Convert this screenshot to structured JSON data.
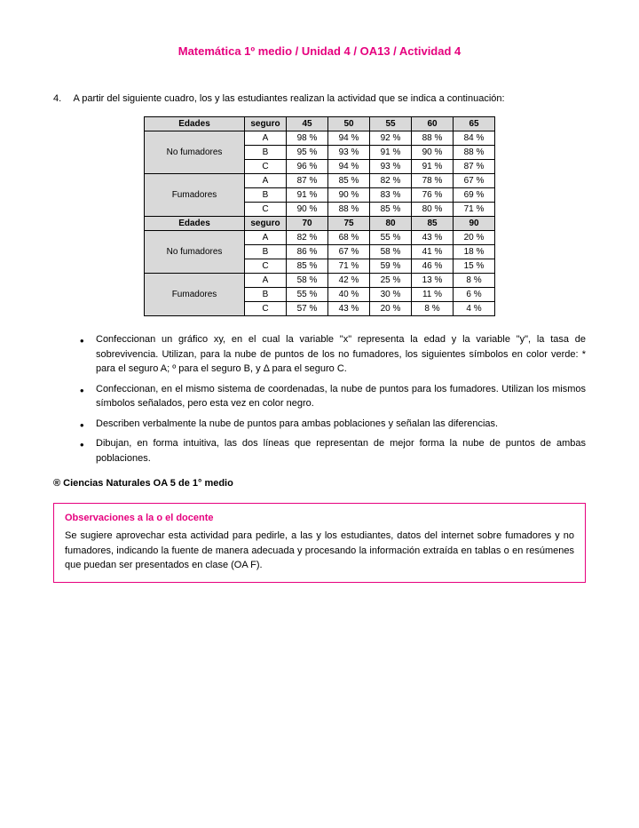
{
  "title": "Matemática 1º medio / Unidad 4 / OA13 / Actividad 4",
  "activity": {
    "num": "4.",
    "intro": "A partir del siguiente cuadro, los y las estudiantes realizan la actividad que se indica a continuación:"
  },
  "table": {
    "header1": [
      "Edades",
      "seguro",
      "45",
      "50",
      "55",
      "60",
      "65"
    ],
    "group1": {
      "label": "No fumadores",
      "rows": [
        [
          "A",
          "98 %",
          "94 %",
          "92 %",
          "88 %",
          "84 %"
        ],
        [
          "B",
          "95 %",
          "93 %",
          "91 %",
          "90 %",
          "88 %"
        ],
        [
          "C",
          "96 %",
          "94 %",
          "93 %",
          "91 %",
          "87 %"
        ]
      ]
    },
    "group2": {
      "label": "Fumadores",
      "rows": [
        [
          "A",
          "87 %",
          "85 %",
          "82 %",
          "78 %",
          "67 %"
        ],
        [
          "B",
          "91 %",
          "90 %",
          "83 %",
          "76 %",
          "69 %"
        ],
        [
          "C",
          "90 %",
          "88 %",
          "85 %",
          "80 %",
          "71 %"
        ]
      ]
    },
    "header2": [
      "Edades",
      "seguro",
      "70",
      "75",
      "80",
      "85",
      "90"
    ],
    "group3": {
      "label": "No fumadores",
      "rows": [
        [
          "A",
          "82 %",
          "68 %",
          "55 %",
          "43 %",
          "20 %"
        ],
        [
          "B",
          "86 %",
          "67 %",
          "58 %",
          "41 %",
          "18 %"
        ],
        [
          "C",
          "85 %",
          "71 %",
          "59 %",
          "46 %",
          "15 %"
        ]
      ]
    },
    "group4": {
      "label": "Fumadores",
      "rows": [
        [
          "A",
          "58 %",
          "42 %",
          "25 %",
          "13 %",
          "8 %"
        ],
        [
          "B",
          "55 %",
          "40 %",
          "30 %",
          "11 %",
          "6 %"
        ],
        [
          "C",
          "57 %",
          "43 %",
          "20 %",
          "8 %",
          "4 %"
        ]
      ]
    }
  },
  "bullets": [
    "Confeccionan un gráfico xy, en el cual la variable \"x\" representa la edad y la variable \"y\", la tasa de sobrevivencia. Utilizan, para la nube de puntos de los no fumadores, los siguientes símbolos en color verde: * para el seguro A; º para el seguro B, y Δ para el seguro C.",
    "Confeccionan, en el mismo sistema de coordenadas, la nube de puntos para los fumadores. Utilizan los mismos símbolos señalados, pero esta vez en color negro.",
    "Describen verbalmente la nube de puntos para ambas poblaciones y señalan las diferencias.",
    "Dibujan, en forma intuitiva, las dos líneas que representan de mejor forma la nube de puntos de ambas poblaciones."
  ],
  "reference": "® Ciencias Naturales OA 5 de 1° medio",
  "observaciones": {
    "title": "Observaciones a la o el docente",
    "body": "Se sugiere aprovechar esta actividad para pedirle, a las y los estudiantes, datos del internet sobre fumadores y no fumadores, indicando la fuente de manera adecuada y procesando la información extraída en tablas o en resúmenes que puedan ser presentados en clase (OA F)."
  }
}
